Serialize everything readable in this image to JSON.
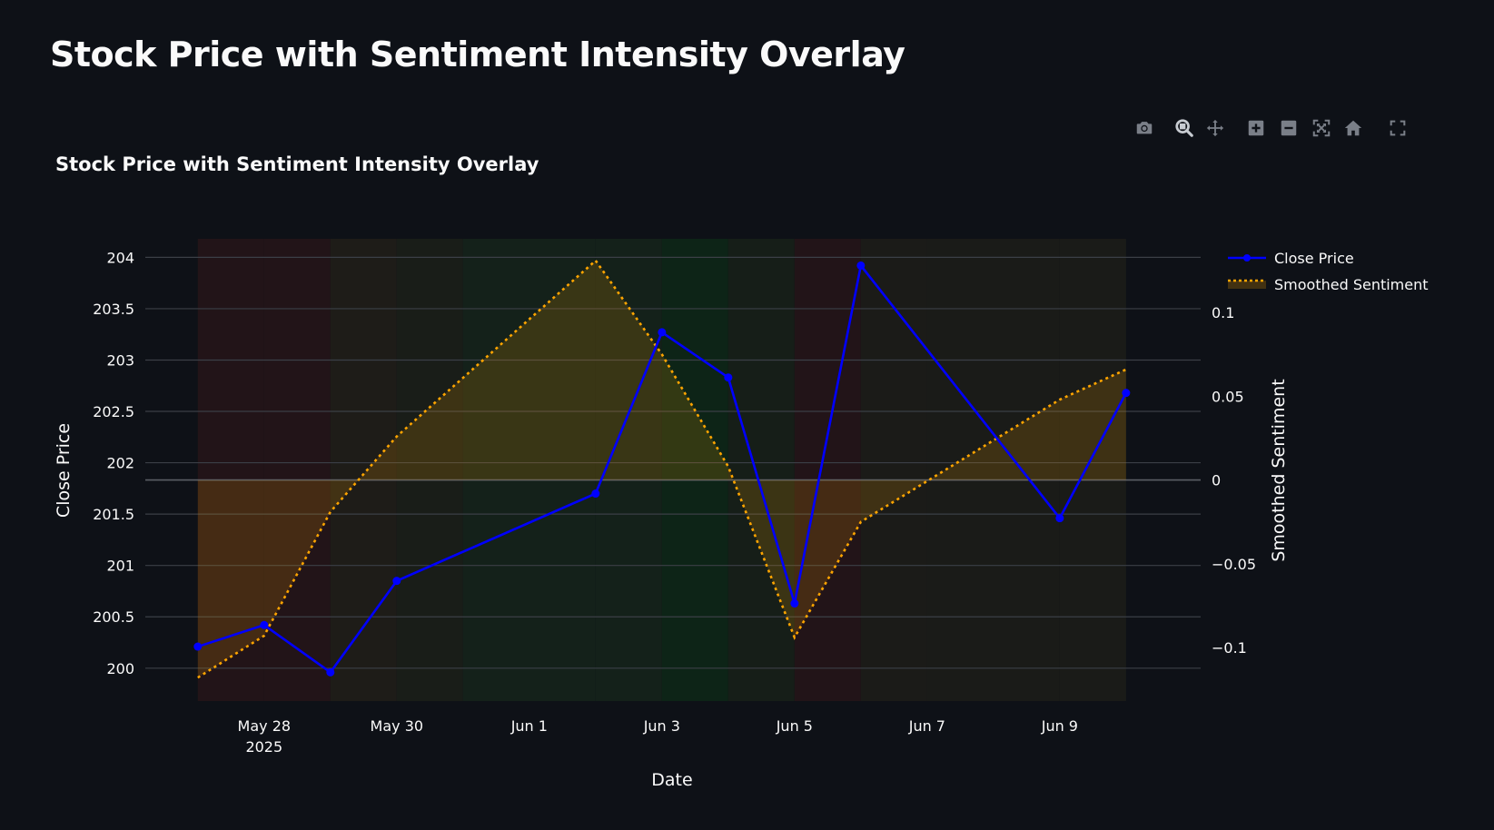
{
  "page": {
    "title": "Stock Price with Sentiment Intensity Overlay"
  },
  "modebar": {
    "buttons": [
      {
        "icon": "camera-icon",
        "name": "download-plot-button"
      },
      {
        "icon": "zoom-icon",
        "name": "zoom-button"
      },
      {
        "icon": "pan-icon",
        "name": "pan-button"
      },
      {
        "icon": "zoom-in-icon",
        "name": "zoom-in-button"
      },
      {
        "icon": "zoom-out-icon",
        "name": "zoom-out-button"
      },
      {
        "icon": "autoscale-icon",
        "name": "autoscale-button"
      },
      {
        "icon": "home-icon",
        "name": "reset-axes-button"
      },
      {
        "icon": "fullscreen-icon",
        "name": "fullscreen-button"
      }
    ]
  },
  "chart_data": {
    "type": "line",
    "title": "Stock Price with Sentiment Intensity Overlay",
    "xlabel": "Date",
    "ylabel": "Close Price",
    "y2label": "Smoothed Sentiment",
    "x": [
      "2025-05-27",
      "2025-05-28",
      "2025-05-29",
      "2025-05-30",
      "2025-06-02",
      "2025-06-03",
      "2025-06-04",
      "2025-06-05",
      "2025-06-06",
      "2025-06-09",
      "2025-06-10"
    ],
    "xtick_labels": [
      "May 28",
      "May 30",
      "Jun 1",
      "Jun 3",
      "Jun 5",
      "Jun 7",
      "Jun 9"
    ],
    "xtick_dates": [
      "2025-05-28",
      "2025-05-30",
      "2025-06-01",
      "2025-06-03",
      "2025-06-05",
      "2025-06-07",
      "2025-06-09"
    ],
    "xtick_sublabel": "2025",
    "xlim": [
      "2025-05-26T05:00",
      "2025-06-11T03:00"
    ],
    "ylim": [
      199.68,
      204.18
    ],
    "yticks": [
      "200",
      "200.5",
      "201",
      "201.5",
      "202",
      "202.5",
      "203",
      "203.5",
      "204"
    ],
    "yticks_values": [
      200,
      200.5,
      201,
      201.5,
      202,
      202.5,
      203,
      203.5,
      204
    ],
    "y2lim": [
      -0.132,
      0.144
    ],
    "y2ticks": [
      "−0.1",
      "−0.05",
      "0",
      "0.05",
      "0.1"
    ],
    "y2ticks_values": [
      -0.1,
      -0.05,
      0,
      0.05,
      0.1
    ],
    "grid": true,
    "legend_position": "top-right",
    "series": [
      {
        "name": "Close Price",
        "axis": "y",
        "style": "solid-markers",
        "color": "#0000ff",
        "values": [
          200.21,
          200.42,
          199.96,
          200.85,
          201.7,
          203.27,
          202.83,
          200.63,
          203.92,
          201.46,
          202.68
        ]
      },
      {
        "name": "Smoothed Sentiment",
        "axis": "y2",
        "style": "dotted-fill",
        "color": "#ffa500",
        "values": [
          -0.118,
          -0.093,
          -0.019,
          0.026,
          0.131,
          0.075,
          0.008,
          -0.094,
          -0.025,
          0.048,
          0.066
        ]
      }
    ],
    "background_bands": {
      "description": "sentiment-colored vertical bands centered on each date",
      "colors": [
        "#221418",
        "#221418",
        "#1e1c18",
        "#191d18",
        "#14211a",
        "#0d2417",
        "#161e18",
        "#221418",
        "#1b1b18",
        "#1a1b18",
        "#182019"
      ]
    },
    "colors": {
      "background": "#0e1117",
      "grid": "#3b3f46",
      "close_price": "#0000ff",
      "sentiment": "#ffa500",
      "text": "#fafafa",
      "modebar_icon": "#7a7f88"
    }
  }
}
